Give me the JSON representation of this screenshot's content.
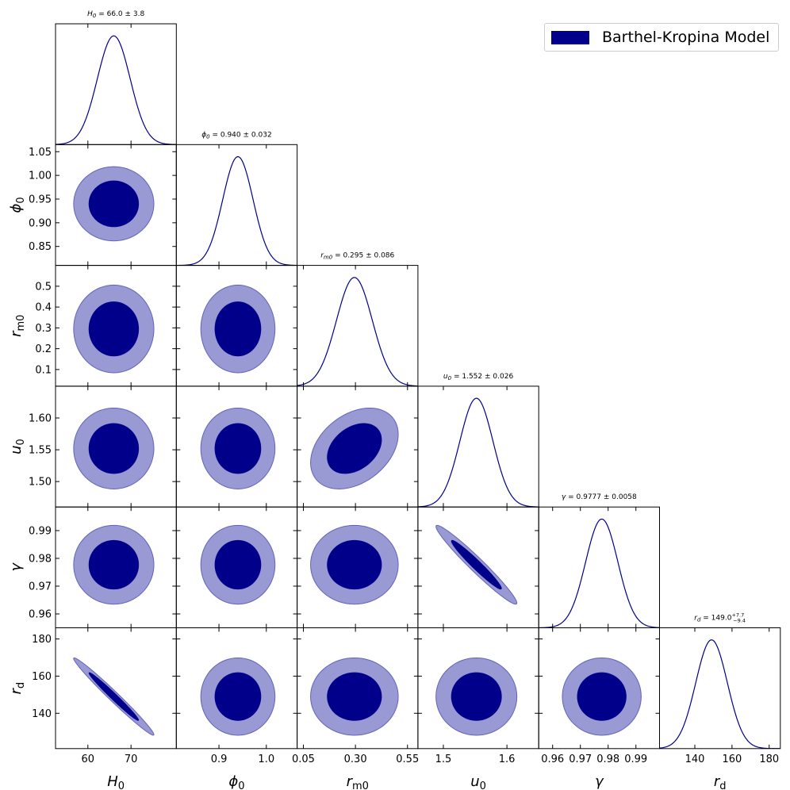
{
  "chart_data": {
    "type": "corner",
    "legend": {
      "label": "Barthel-Kropina Model",
      "placement": "top-right",
      "color": "#00008b"
    },
    "colors": {
      "dark": "#00008b",
      "light": "#9999d4",
      "light_edge": "#6363bb",
      "line": "#00008b"
    },
    "params": [
      {
        "name": "H0",
        "tex": {
          "base": "H",
          "sub": "0"
        },
        "mean": 66.0,
        "sigma": 3.8,
        "range": [
          52.5,
          80.5
        ],
        "ticks": [
          60,
          70
        ],
        "tick_labels": [
          "60",
          "70"
        ],
        "title": {
          "lhs": "H",
          "lhs_sub": "0",
          "text": " = 66.0 ± 3.8"
        }
      },
      {
        "name": "phi0",
        "tex": {
          "base": "ϕ",
          "sub": "0"
        },
        "mean": 0.94,
        "sigma": 0.032,
        "range": [
          0.81,
          1.065
        ],
        "ticks": [
          0.85,
          0.9,
          0.95,
          1.0,
          1.05
        ],
        "tick_labels": [
          "0.85",
          "0.90",
          "0.95",
          "1.00",
          "1.05"
        ],
        "xticks": [
          0.9,
          1.0
        ],
        "xtick_labels": [
          "0.9",
          "1.0"
        ],
        "title": {
          "lhs": "ϕ",
          "lhs_sub": "0",
          "text": " = 0.940 ± 0.032"
        }
      },
      {
        "name": "rm0",
        "tex": {
          "base": "r",
          "sub": "m0"
        },
        "mean": 0.295,
        "sigma": 0.086,
        "range": [
          0.02,
          0.6
        ],
        "ticks": [
          0.1,
          0.2,
          0.3,
          0.4,
          0.5
        ],
        "tick_labels": [
          "0.1",
          "0.2",
          "0.3",
          "0.4",
          "0.5"
        ],
        "xticks": [
          0.05,
          0.3,
          0.55
        ],
        "xtick_labels": [
          "0.05",
          "0.30",
          "0.55"
        ],
        "title": {
          "lhs": "r",
          "lhs_sub": "m0",
          "text": " = 0.295 ± 0.086"
        }
      },
      {
        "name": "u0",
        "tex": {
          "base": "u",
          "sub": "0"
        },
        "mean": 1.552,
        "sigma": 0.026,
        "range": [
          1.46,
          1.65
        ],
        "ticks": [
          1.5,
          1.55,
          1.6
        ],
        "tick_labels": [
          "1.50",
          "1.55",
          "1.60"
        ],
        "xticks": [
          1.5,
          1.6
        ],
        "xtick_labels": [
          "1.5",
          "1.6"
        ],
        "title": {
          "lhs": "u",
          "lhs_sub": "0",
          "text": " = 1.552 ± 0.026"
        }
      },
      {
        "name": "gamma",
        "tex": {
          "base": "γ",
          "sub": ""
        },
        "mean": 0.9777,
        "sigma": 0.0058,
        "range": [
          0.955,
          0.9985
        ],
        "ticks": [
          0.96,
          0.97,
          0.98,
          0.99
        ],
        "tick_labels": [
          "0.96",
          "0.97",
          "0.98",
          "0.99"
        ],
        "title": {
          "lhs": "γ",
          "lhs_sub": "",
          "text": " = 0.9777 ± 0.0058"
        }
      },
      {
        "name": "rd",
        "tex": {
          "base": "r",
          "sub": "d"
        },
        "mean": 149.0,
        "sigma": 8.5,
        "range": [
          121.0,
          186.0
        ],
        "ticks": [
          140,
          160,
          180
        ],
        "tick_labels": [
          "140",
          "160",
          "180"
        ],
        "title": {
          "lhs": "r",
          "lhs_sub": "d",
          "text": " = 149.0",
          "sup": "+7.7",
          "sub": "−9.4"
        }
      }
    ],
    "correlations": [
      {
        "i": 5,
        "j": 0,
        "rho": -0.985
      },
      {
        "i": 4,
        "j": 3,
        "rho": -0.97
      },
      {
        "i": 3,
        "j": 2,
        "rho": 0.35
      }
    ],
    "contour_levels": [
      "68%",
      "95%"
    ]
  }
}
